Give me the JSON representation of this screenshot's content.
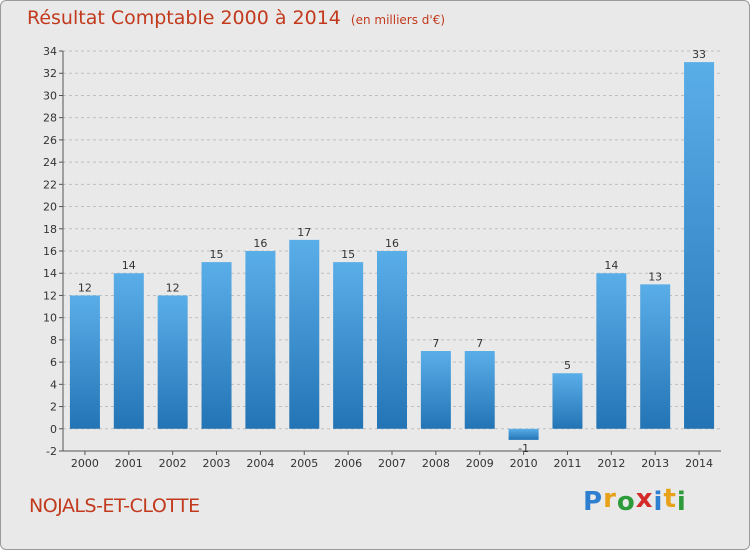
{
  "title": "Résultat Comptable 2000 à 2014",
  "subtitle": "(en milliers d'€)",
  "commune": "NOJALS-ET-CLOTTE",
  "logo": {
    "letters": [
      "P",
      "r",
      "o",
      "x",
      "i",
      "t",
      "i"
    ],
    "colors": [
      "#2f7fd0",
      "#e8a21a",
      "#2e9b3b",
      "#d42a2a",
      "#2f7fd0",
      "#e8a21a",
      "#2e9b3b"
    ]
  },
  "colors": {
    "title": "#c23a1d",
    "bar_light": "#5aaee8",
    "bar_dark": "#2374b5",
    "grid": "#bfbfbf",
    "background": "#e9e9e9"
  },
  "chart_data": {
    "type": "bar",
    "title": "Résultat Comptable 2000 à 2014",
    "ylabel": "en milliers d'€",
    "xlabel": "",
    "categories": [
      "2000",
      "2001",
      "2002",
      "2003",
      "2004",
      "2005",
      "2006",
      "2007",
      "2008",
      "2009",
      "2010",
      "2011",
      "2012",
      "2013",
      "2014"
    ],
    "values": [
      12,
      14,
      12,
      15,
      16,
      17,
      15,
      16,
      7,
      7,
      -1,
      5,
      14,
      13,
      33
    ],
    "value_labels": [
      "12",
      "14",
      "12",
      "15",
      "16",
      "17",
      "15",
      "16",
      "7",
      "7",
      "-1",
      "5",
      "14",
      "13",
      "33"
    ],
    "ylim": [
      -2,
      34
    ],
    "yticks": [
      -2,
      0,
      2,
      4,
      6,
      8,
      10,
      12,
      14,
      16,
      18,
      20,
      22,
      24,
      26,
      28,
      30,
      32,
      34
    ],
    "grid": true
  }
}
